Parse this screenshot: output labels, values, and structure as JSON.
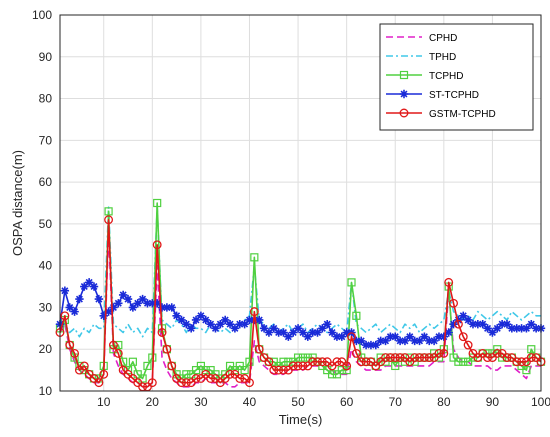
{
  "chart_data": {
    "type": "line",
    "title": "",
    "xlabel": "Time(s)",
    "ylabel": "OSPA distance(m)",
    "xlim": [
      1,
      100
    ],
    "ylim": [
      10,
      100
    ],
    "xticks": [
      10,
      20,
      30,
      40,
      50,
      60,
      70,
      80,
      90,
      100
    ],
    "yticks": [
      10,
      20,
      30,
      40,
      50,
      60,
      70,
      80,
      90,
      100
    ],
    "grid": true,
    "legend_position": "top-right",
    "series": [
      {
        "name": "CPHD",
        "color": "#e020c8",
        "style": "dashed",
        "marker": "none",
        "y": [
          24,
          26,
          20,
          17,
          15,
          14,
          13,
          12,
          12,
          14,
          48,
          19,
          16,
          14,
          13,
          12,
          12,
          11,
          11,
          12,
          40,
          18,
          15,
          13,
          12,
          11,
          11,
          11,
          12,
          12,
          13,
          12,
          12,
          12,
          12,
          11,
          11,
          12,
          12,
          12,
          22,
          17,
          16,
          15,
          14,
          14,
          14,
          15,
          15,
          15,
          15,
          16,
          16,
          16,
          16,
          15,
          15,
          14,
          14,
          14,
          20,
          17,
          16,
          15,
          15,
          15,
          15,
          16,
          16,
          16,
          16,
          16,
          16,
          16,
          16,
          16,
          16,
          17,
          17,
          17,
          34,
          20,
          18,
          17,
          17,
          16,
          16,
          16,
          16,
          15,
          15,
          16,
          16,
          16,
          15,
          14,
          13,
          16,
          16,
          16
        ]
      },
      {
        "name": "TPHD",
        "color": "#40c8e8",
        "style": "dashdot",
        "marker": "none",
        "y": [
          25,
          26,
          24,
          25,
          23,
          25,
          24,
          26,
          25,
          25,
          54,
          26,
          25,
          24,
          26,
          24,
          25,
          23,
          25,
          24,
          54,
          27,
          26,
          25,
          27,
          26,
          24,
          26,
          25,
          25,
          24,
          26,
          25,
          24,
          25,
          24,
          25,
          26,
          27,
          28,
          40,
          27,
          26,
          25,
          26,
          24,
          25,
          26,
          24,
          25,
          26,
          24,
          25,
          26,
          25,
          24,
          25,
          26,
          25,
          24,
          36,
          26,
          25,
          24,
          25,
          26,
          24,
          25,
          26,
          25,
          24,
          26,
          25,
          26,
          24,
          25,
          26,
          25,
          26,
          27,
          34,
          29,
          28,
          27,
          28,
          27,
          29,
          28,
          27,
          28,
          29,
          28,
          27,
          29,
          28,
          27,
          28,
          29,
          28,
          28
        ]
      },
      {
        "name": "TCPHD",
        "color": "#50d040",
        "style": "solid",
        "marker": "square",
        "y": [
          25,
          27,
          21,
          18,
          16,
          15,
          14,
          13,
          13,
          16,
          53,
          20,
          21,
          17,
          15,
          17,
          14,
          13,
          16,
          18,
          55,
          25,
          20,
          16,
          14,
          13,
          14,
          14,
          15,
          16,
          15,
          15,
          14,
          13,
          14,
          16,
          15,
          16,
          15,
          17,
          42,
          20,
          18,
          17,
          17,
          16,
          17,
          17,
          17,
          18,
          18,
          18,
          18,
          17,
          16,
          15,
          14,
          14,
          15,
          15,
          36,
          28,
          18,
          17,
          17,
          16,
          18,
          17,
          18,
          16,
          18,
          17,
          18,
          17,
          18,
          18,
          18,
          19,
          18,
          20,
          35,
          18,
          17,
          17,
          17,
          18,
          18,
          19,
          19,
          19,
          20,
          18,
          18,
          18,
          17,
          16,
          15,
          20,
          18,
          17
        ]
      },
      {
        "name": "ST-TCPHD",
        "color": "#1a2bd8",
        "style": "solid",
        "marker": "star",
        "y": [
          26,
          34,
          30,
          29,
          32,
          35,
          36,
          35,
          32,
          28,
          29,
          30,
          31,
          33,
          32,
          30,
          31,
          32,
          31,
          31,
          31,
          30,
          30,
          30,
          28,
          27,
          26,
          25,
          27,
          28,
          27,
          26,
          25,
          26,
          27,
          26,
          25,
          26,
          26,
          27,
          27,
          27,
          25,
          24,
          25,
          24,
          24,
          23,
          24,
          25,
          24,
          23,
          24,
          24,
          25,
          26,
          24,
          23,
          23,
          24,
          24,
          22,
          22,
          21,
          21,
          21,
          22,
          22,
          23,
          23,
          22,
          22,
          23,
          22,
          22,
          23,
          22,
          22,
          23,
          23,
          24,
          26,
          27,
          28,
          27,
          26,
          26,
          26,
          25,
          24,
          25,
          26,
          26,
          25,
          25,
          25,
          25,
          26,
          25,
          25
        ]
      },
      {
        "name": "GSTM-TCPHD",
        "color": "#e01818",
        "style": "solid",
        "marker": "circle",
        "y": [
          24,
          28,
          21,
          19,
          15,
          16,
          14,
          13,
          12,
          14,
          51,
          21,
          19,
          15,
          14,
          13,
          12,
          11,
          11,
          12,
          45,
          24,
          20,
          16,
          13,
          12,
          12,
          12,
          13,
          13,
          14,
          13,
          13,
          12,
          13,
          14,
          14,
          13,
          13,
          12,
          29,
          20,
          18,
          17,
          15,
          15,
          15,
          15,
          16,
          16,
          16,
          16,
          17,
          17,
          17,
          17,
          16,
          17,
          17,
          16,
          23,
          19,
          17,
          17,
          17,
          16,
          17,
          18,
          18,
          18,
          18,
          18,
          17,
          18,
          18,
          18,
          18,
          18,
          19,
          19,
          36,
          31,
          26,
          23,
          21,
          19,
          18,
          19,
          18,
          18,
          19,
          19,
          18,
          18,
          17,
          17,
          17,
          18,
          18,
          17
        ]
      }
    ]
  }
}
